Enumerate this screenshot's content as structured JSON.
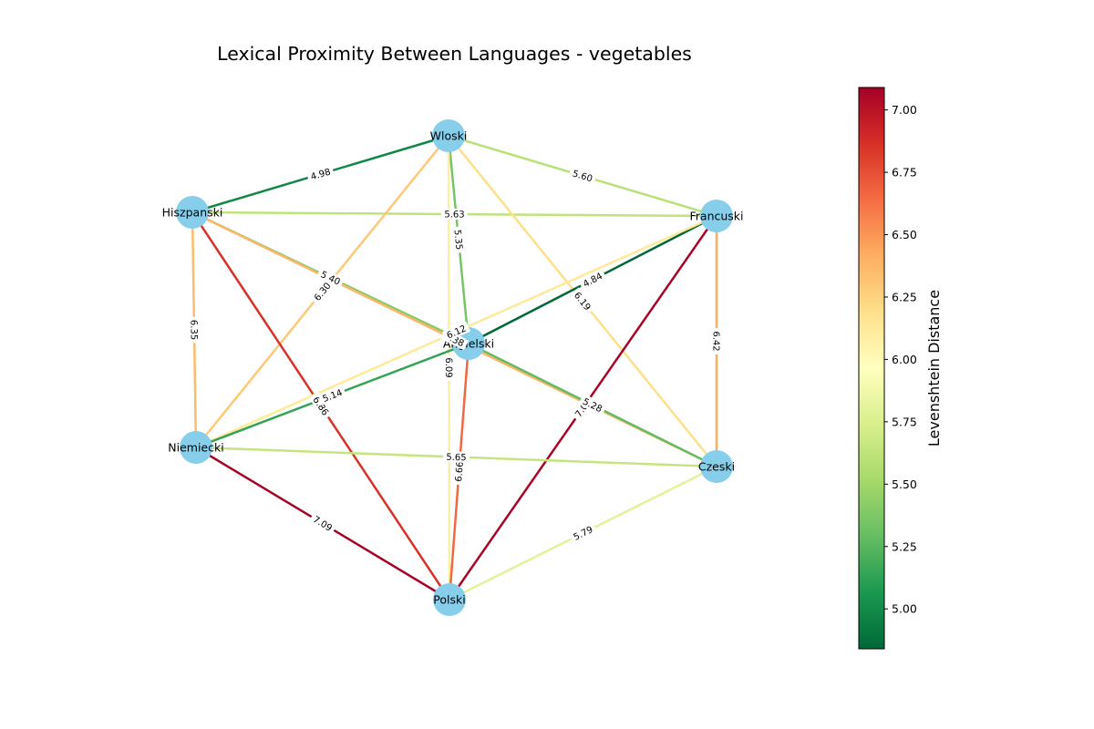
{
  "title": "Lexical Proximity Between Languages - vegetables",
  "colorbar": {
    "label": "Levenshtein Distance",
    "min": 4.84,
    "max": 7.09,
    "ticks": [
      "5.00",
      "5.25",
      "5.50",
      "5.75",
      "6.00",
      "6.25",
      "6.50",
      "6.75",
      "7.00"
    ],
    "colormap": "RdYlGn_r"
  },
  "chart_data": {
    "type": "network",
    "nodes": [
      "Wloski",
      "Hiszpanski",
      "Francuski",
      "Angielski",
      "Niemiecki",
      "Czeski",
      "Polski"
    ],
    "node_color": "#87ceeb",
    "edges": [
      {
        "source": "Wloski",
        "target": "Hiszpanski",
        "weight": 4.98,
        "label": "4.98"
      },
      {
        "source": "Wloski",
        "target": "Francuski",
        "weight": 5.6,
        "label": "5.60"
      },
      {
        "source": "Hiszpanski",
        "target": "Francuski",
        "weight": 5.63,
        "label": "5.63"
      },
      {
        "source": "Wloski",
        "target": "Angielski",
        "weight": 5.35,
        "label": "5.35"
      },
      {
        "source": "Hiszpanski",
        "target": "Angielski",
        "weight": 5.4,
        "label": "5.40"
      },
      {
        "source": "Wloski",
        "target": "Niemiecki",
        "weight": 6.3,
        "label": "6.30"
      },
      {
        "source": "Wloski",
        "target": "Czeski",
        "weight": 6.19,
        "label": "6.19"
      },
      {
        "source": "Wloski",
        "target": "Polski",
        "weight": 6.09,
        "label": "6.09"
      },
      {
        "source": "Hiszpanski",
        "target": "Niemiecki",
        "weight": 6.35,
        "label": "6.35"
      },
      {
        "source": "Hiszpanski",
        "target": "Polski",
        "weight": 6.86,
        "label": "6.86"
      },
      {
        "source": "Hiszpanski",
        "target": "Czeski",
        "weight": 6.38,
        "label": "6.38"
      },
      {
        "source": "Francuski",
        "target": "Angielski",
        "weight": 4.84,
        "label": "4.84"
      },
      {
        "source": "Francuski",
        "target": "Czeski",
        "weight": 6.42,
        "label": "6.42"
      },
      {
        "source": "Francuski",
        "target": "Polski",
        "weight": 7.07,
        "label": "7.07"
      },
      {
        "source": "Francuski",
        "target": "Niemiecki",
        "weight": 6.12,
        "label": "6.12"
      },
      {
        "source": "Angielski",
        "target": "Niemiecki",
        "weight": 5.14,
        "label": "5.14"
      },
      {
        "source": "Angielski",
        "target": "Polski",
        "weight": 6.66,
        "label": "6.66"
      },
      {
        "source": "Angielski",
        "target": "Czeski",
        "weight": 5.28,
        "label": "5.28"
      },
      {
        "source": "Niemiecki",
        "target": "Czeski",
        "weight": 5.65,
        "label": "5.65"
      },
      {
        "source": "Niemiecki",
        "target": "Polski",
        "weight": 7.09,
        "label": "7.09"
      },
      {
        "source": "Czeski",
        "target": "Polski",
        "weight": 5.79,
        "label": "5.79"
      }
    ]
  }
}
